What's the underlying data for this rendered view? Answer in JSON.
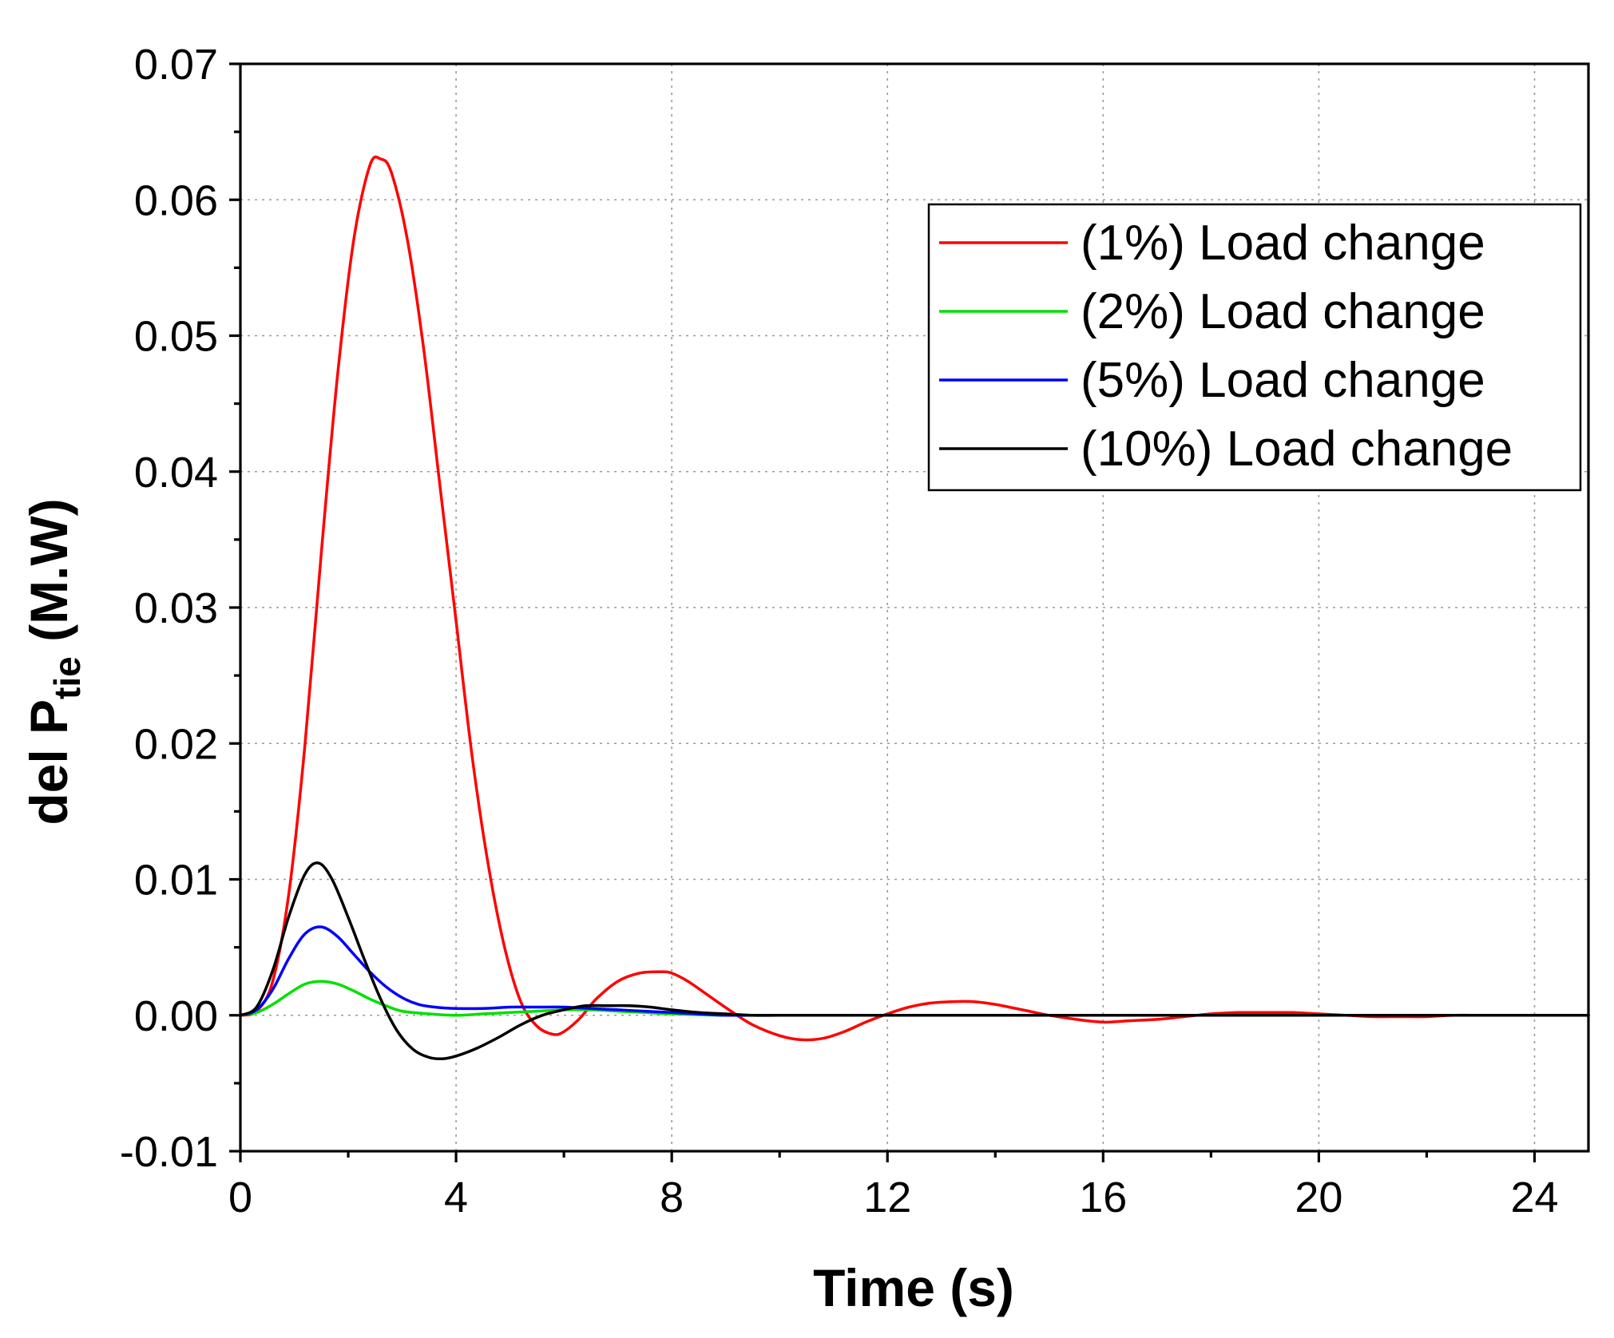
{
  "chart_data": {
    "type": "line",
    "title": "",
    "xlabel": "Time (s)",
    "ylabel": {
      "main": "del P",
      "subscript": "tie",
      "suffix": " (M.W)"
    },
    "xlim": [
      0,
      25
    ],
    "ylim": [
      -0.01,
      0.07
    ],
    "xticks": [
      0,
      4,
      8,
      12,
      16,
      20,
      24
    ],
    "xtick_labels": [
      "0",
      "4",
      "8",
      "12",
      "16",
      "20",
      "24"
    ],
    "yticks": [
      -0.01,
      0,
      0.01,
      0.02,
      0.03,
      0.04,
      0.05,
      0.06,
      0.07
    ],
    "ytick_labels": [
      "-0.01",
      "0.00",
      "0.01",
      "0.02",
      "0.03",
      "0.04",
      "0.05",
      "0.06",
      "0.07"
    ],
    "grid": true,
    "legend_position": "top-right",
    "series": [
      {
        "name": "(1%) Load change",
        "color": "#ff0000",
        "x": [
          0,
          0.3,
          0.6,
          0.9,
          1.2,
          1.5,
          1.8,
          2.1,
          2.4,
          2.6,
          2.8,
          3.1,
          3.4,
          3.7,
          4.0,
          4.3,
          4.6,
          4.9,
          5.2,
          5.5,
          5.8,
          6.0,
          6.3,
          6.6,
          7.0,
          7.4,
          7.8,
          8.0,
          8.3,
          8.7,
          9.1,
          9.5,
          10.0,
          10.4,
          10.8,
          11.2,
          11.6,
          12.0,
          12.4,
          12.8,
          13.2,
          13.6,
          14.0,
          14.5,
          15.0,
          15.5,
          16.0,
          16.5,
          17.0,
          17.5,
          18.0,
          18.5,
          19.0,
          19.5,
          20.0,
          20.5,
          21.0,
          21.5,
          22.0,
          22.5,
          23.0,
          23.5,
          24.0,
          24.5,
          25.0
        ],
        "values": [
          0,
          0.0003,
          0.0025,
          0.009,
          0.02,
          0.034,
          0.047,
          0.057,
          0.0625,
          0.063,
          0.062,
          0.057,
          0.049,
          0.039,
          0.029,
          0.019,
          0.011,
          0.005,
          0.001,
          -0.0008,
          -0.0014,
          -0.0012,
          -0.0002,
          0.0012,
          0.0025,
          0.0031,
          0.0032,
          0.0031,
          0.0025,
          0.0014,
          0.0003,
          -0.0007,
          -0.0015,
          -0.0018,
          -0.0017,
          -0.0012,
          -0.0005,
          0.0001,
          0.0006,
          0.0009,
          0.001,
          0.001,
          0.0008,
          0.0004,
          0.0,
          -0.0003,
          -0.0005,
          -0.0004,
          -0.0003,
          -0.0001,
          0.0001,
          0.0002,
          0.0002,
          0.0002,
          0.0001,
          0.0,
          -0.0001,
          -0.0001,
          -0.0001,
          0.0,
          0.0,
          0.0,
          0.0,
          0.0,
          0.0
        ]
      },
      {
        "name": "(2%) Load change",
        "color": "#00e000",
        "x": [
          0,
          0.3,
          0.6,
          0.9,
          1.2,
          1.5,
          1.8,
          2.1,
          2.4,
          2.7,
          3.0,
          3.5,
          4.0,
          4.5,
          5.0,
          5.5,
          6.0,
          6.5,
          7.0,
          7.5,
          8.0,
          9.0,
          10.0,
          12.0,
          25.0
        ],
        "values": [
          0,
          0.0002,
          0.0008,
          0.0016,
          0.0023,
          0.0025,
          0.0023,
          0.0018,
          0.0012,
          0.0007,
          0.0003,
          0.0001,
          0.0,
          0.0001,
          0.0002,
          0.0003,
          0.0004,
          0.0004,
          0.0003,
          0.0002,
          0.0001,
          0.0,
          0.0,
          0.0,
          0.0
        ]
      },
      {
        "name": "(5%) Load change",
        "color": "#0000ff",
        "x": [
          0,
          0.3,
          0.6,
          0.9,
          1.2,
          1.5,
          1.8,
          2.1,
          2.4,
          2.7,
          3.0,
          3.3,
          3.6,
          4.0,
          4.5,
          5.0,
          5.5,
          6.0,
          6.5,
          7.0,
          7.5,
          8.0,
          8.5,
          9.0,
          10.0,
          12.0,
          25.0
        ],
        "values": [
          0,
          0.0004,
          0.0019,
          0.0042,
          0.006,
          0.0065,
          0.0058,
          0.0045,
          0.0032,
          0.0021,
          0.0013,
          0.0008,
          0.0006,
          0.0005,
          0.0005,
          0.0006,
          0.0006,
          0.0006,
          0.0005,
          0.0004,
          0.0003,
          0.0002,
          0.0001,
          0.0,
          0.0,
          0.0,
          0.0
        ]
      },
      {
        "name": "(10%) Load change",
        "color": "#000000",
        "x": [
          0,
          0.3,
          0.6,
          0.9,
          1.2,
          1.45,
          1.7,
          2.0,
          2.3,
          2.6,
          2.9,
          3.2,
          3.5,
          3.75,
          4.0,
          4.4,
          4.8,
          5.2,
          5.6,
          6.0,
          6.4,
          6.8,
          7.2,
          7.6,
          8.0,
          8.5,
          9.0,
          9.5,
          10.0,
          11.0,
          12.0,
          25.0
        ],
        "values": [
          0,
          0.0006,
          0.0033,
          0.0073,
          0.0104,
          0.0112,
          0.01,
          0.0072,
          0.0041,
          0.0012,
          -0.0011,
          -0.0025,
          -0.0031,
          -0.0032,
          -0.003,
          -0.0024,
          -0.0016,
          -0.0007,
          0.0,
          0.0004,
          0.0007,
          0.0007,
          0.0007,
          0.0006,
          0.0004,
          0.0002,
          0.0001,
          0.0,
          0.0,
          0.0,
          0.0,
          0.0
        ]
      }
    ]
  }
}
